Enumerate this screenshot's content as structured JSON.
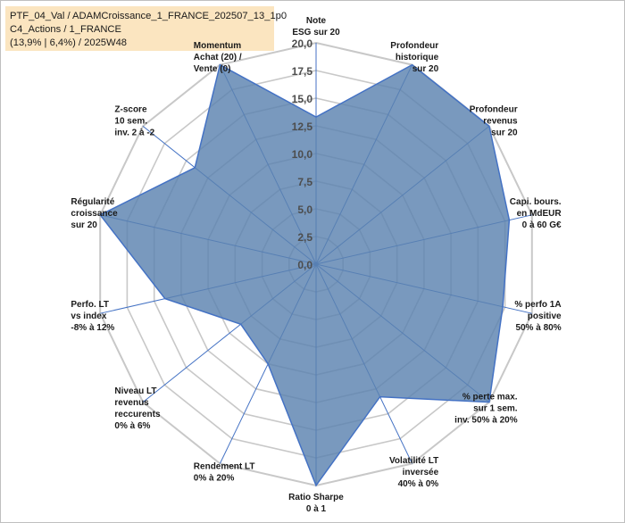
{
  "info": {
    "line1": "PTF_04_Val / ADAMCroissance_1_FRANCE_202507_13_1p0",
    "line2": "C4_Actions / 1_FRANCE",
    "line3": "(13,9% | 6,4%) / 2025W48"
  },
  "chart_data": {
    "type": "radar",
    "title": "",
    "rmin": 0,
    "rmax": 20,
    "ticks": [
      "0,0",
      "2,5",
      "5,0",
      "7,5",
      "10,0",
      "12,5",
      "15,0",
      "17,5",
      "20,0"
    ],
    "axes": [
      {
        "label": [
          "Note",
          "ESG sur 20"
        ],
        "value": 13.3
      },
      {
        "label": [
          "Profondeur",
          "historique",
          "sur 20"
        ],
        "value": 20
      },
      {
        "label": [
          "Profondeur",
          "revenus",
          "sur 20"
        ],
        "value": 20
      },
      {
        "label": [
          "Capi. bours.",
          "en MdEUR",
          "0 à 60 G€"
        ],
        "value": 17.9
      },
      {
        "label": [
          "% perfo 1A",
          "positive",
          "50% à 80%"
        ],
        "value": 17.3
      },
      {
        "label": [
          "% perte max.",
          "sur 1 sem.",
          "inv. 50% à 20%"
        ],
        "value": 20
      },
      {
        "label": [
          "Volatilité LT",
          "inversée",
          "40% à 0%"
        ],
        "value": 13.3
      },
      {
        "label": [
          "Ratio Sharpe",
          "0 à 1"
        ],
        "value": 20
      },
      {
        "label": [
          "Rendement LT",
          "0% à 20%"
        ],
        "value": 10
      },
      {
        "label": [
          "Niveau LT",
          "revenus",
          "reccurents",
          "0% à 6%"
        ],
        "value": 8.7
      },
      {
        "label": [
          "Perfo. LT",
          "vs index",
          "-8% à 12%"
        ],
        "value": 14
      },
      {
        "label": [
          "Régularité",
          "croissance",
          "sur 20"
        ],
        "value": 20
      },
      {
        "label": [
          "Z-score",
          "10 sem.",
          "inv. 2 à -2"
        ],
        "value": 14
      },
      {
        "label": [
          "Momentum",
          "Achat (20) /",
          "Vente (0)"
        ],
        "value": 20
      }
    ],
    "grid": true,
    "legend": "none",
    "colors": {
      "fill": "#5b83b0",
      "outline": "#4472c4",
      "grid": "#c8c8c8",
      "spoke": "#4472c4"
    }
  }
}
